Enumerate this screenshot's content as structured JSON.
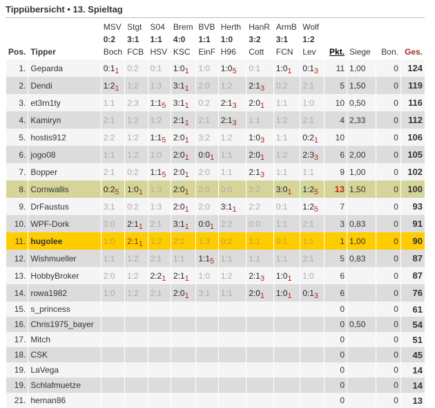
{
  "title": "Tippübersicht • 13. Spieltag",
  "columns": {
    "pos": "Pos.",
    "tipper": "Tipper",
    "pkt": "Pkt.",
    "siege": "Siege",
    "bon": "Bon.",
    "ges": "Ges."
  },
  "matches": [
    {
      "home": "MSV",
      "result": "0:2",
      "away": "Boch"
    },
    {
      "home": "Stgt",
      "result": "3:1",
      "away": "FCB"
    },
    {
      "home": "S04",
      "result": "1:1",
      "away": "HSV"
    },
    {
      "home": "Brem",
      "result": "4:0",
      "away": "KSC"
    },
    {
      "home": "BVB",
      "result": "1:1",
      "away": "EinF"
    },
    {
      "home": "Herth",
      "result": "1:0",
      "away": "H96"
    },
    {
      "home": "HanR",
      "result": "3:2",
      "away": "Cott"
    },
    {
      "home": "ArmB",
      "result": "3:1",
      "away": "FCN"
    },
    {
      "home": "Wolf",
      "result": "1:2",
      "away": "Lev"
    }
  ],
  "colors": {
    "row_odd": "#f5f5f5",
    "row_even": "#dcdcdc",
    "row_highlight": "#d5d59a",
    "row_current_user": "#ffcc00",
    "points_red": "#b02a10"
  },
  "rows": [
    {
      "pos": "1.",
      "tipper": "Geparda",
      "tips": [
        {
          "s": "0:1",
          "p": "1"
        },
        {
          "s": "0:2"
        },
        {
          "s": "0:1"
        },
        {
          "s": "1:0",
          "p": "1"
        },
        {
          "s": "1:0"
        },
        {
          "s": "1:0",
          "p": "5"
        },
        {
          "s": "0:1"
        },
        {
          "s": "1:0",
          "p": "1"
        },
        {
          "s": "0:1",
          "p": "3"
        }
      ],
      "pkt": "11",
      "siege": "1,00",
      "bon": "0",
      "ges": "124"
    },
    {
      "pos": "2.",
      "tipper": "Dendi",
      "tips": [
        {
          "s": "1:2",
          "p": "1"
        },
        {
          "s": "1:2"
        },
        {
          "s": "1:3"
        },
        {
          "s": "3:1",
          "p": "1"
        },
        {
          "s": "2:0"
        },
        {
          "s": "1:2"
        },
        {
          "s": "2:1",
          "p": "3"
        },
        {
          "s": "0:2"
        },
        {
          "s": "2:1"
        }
      ],
      "pkt": "5",
      "siege": "1,50",
      "bon": "0",
      "ges": "119"
    },
    {
      "pos": "3.",
      "tipper": "et3rn1ty",
      "tips": [
        {
          "s": "1:1"
        },
        {
          "s": "2:3"
        },
        {
          "s": "1:1",
          "p": "5"
        },
        {
          "s": "3:1",
          "p": "1"
        },
        {
          "s": "0:2"
        },
        {
          "s": "2:1",
          "p": "3"
        },
        {
          "s": "2:0",
          "p": "1"
        },
        {
          "s": "1:1"
        },
        {
          "s": "1:0"
        }
      ],
      "pkt": "10",
      "siege": "0,50",
      "bon": "0",
      "ges": "116"
    },
    {
      "pos": "4.",
      "tipper": "Kamiryn",
      "tips": [
        {
          "s": "2:1"
        },
        {
          "s": "1:2"
        },
        {
          "s": "1:2"
        },
        {
          "s": "2:1",
          "p": "1"
        },
        {
          "s": "2:1"
        },
        {
          "s": "2:1",
          "p": "3"
        },
        {
          "s": "1:1"
        },
        {
          "s": "1:2"
        },
        {
          "s": "2:1"
        }
      ],
      "pkt": "4",
      "siege": "2,33",
      "bon": "0",
      "ges": "112"
    },
    {
      "pos": "5.",
      "tipper": "hostis912",
      "tips": [
        {
          "s": "2:2"
        },
        {
          "s": "1:2"
        },
        {
          "s": "1:1",
          "p": "5"
        },
        {
          "s": "2:0",
          "p": "1"
        },
        {
          "s": "3:2"
        },
        {
          "s": "1:2"
        },
        {
          "s": "1:0",
          "p": "3"
        },
        {
          "s": "1:1"
        },
        {
          "s": "0:2",
          "p": "1"
        }
      ],
      "pkt": "10",
      "siege": "",
      "bon": "0",
      "ges": "106"
    },
    {
      "pos": "6.",
      "tipper": "jogo08",
      "tips": [
        {
          "s": "1:1"
        },
        {
          "s": "1:2"
        },
        {
          "s": "1:0"
        },
        {
          "s": "2:0",
          "p": "1"
        },
        {
          "s": "0:0",
          "p": "1"
        },
        {
          "s": "1:1"
        },
        {
          "s": "2:0",
          "p": "1"
        },
        {
          "s": "1:2"
        },
        {
          "s": "2:3",
          "p": "3"
        }
      ],
      "pkt": "6",
      "siege": "2,00",
      "bon": "0",
      "ges": "105"
    },
    {
      "pos": "7.",
      "tipper": "Bopper",
      "tips": [
        {
          "s": "2:1"
        },
        {
          "s": "0:2"
        },
        {
          "s": "1:1",
          "p": "5"
        },
        {
          "s": "2:0",
          "p": "1"
        },
        {
          "s": "2:0"
        },
        {
          "s": "1:1"
        },
        {
          "s": "2:1",
          "p": "3"
        },
        {
          "s": "1:1"
        },
        {
          "s": "1:1"
        }
      ],
      "pkt": "9",
      "siege": "1,00",
      "bon": "0",
      "ges": "102"
    },
    {
      "pos": "8.",
      "tipper": "Cornwallis",
      "highlight": "me",
      "tips": [
        {
          "s": "0:2",
          "p": "5"
        },
        {
          "s": "1:0",
          "p": "1"
        },
        {
          "s": "1:3"
        },
        {
          "s": "2:0",
          "p": "1"
        },
        {
          "s": "2:0"
        },
        {
          "s": "0:0"
        },
        {
          "s": "2:2"
        },
        {
          "s": "3:0",
          "p": "1"
        },
        {
          "s": "1:2",
          "p": "5"
        }
      ],
      "pkt": "13",
      "pkt_best": true,
      "siege": "1,50",
      "bon": "0",
      "ges": "100"
    },
    {
      "pos": "9.",
      "tipper": "DrFaustus",
      "tips": [
        {
          "s": "3:1"
        },
        {
          "s": "0:2"
        },
        {
          "s": "1:3"
        },
        {
          "s": "2:0",
          "p": "1"
        },
        {
          "s": "2:0"
        },
        {
          "s": "3:1",
          "p": "1"
        },
        {
          "s": "2:2"
        },
        {
          "s": "0:1"
        },
        {
          "s": "1:2",
          "p": "5"
        }
      ],
      "pkt": "7",
      "siege": "",
      "bon": "0",
      "ges": "93"
    },
    {
      "pos": "10.",
      "tipper": "WPF-Dork",
      "tips": [
        {
          "s": "0:0"
        },
        {
          "s": "2:1",
          "p": "1"
        },
        {
          "s": "2:1"
        },
        {
          "s": "3:1",
          "p": "1"
        },
        {
          "s": "0:0",
          "p": "1"
        },
        {
          "s": "2:2"
        },
        {
          "s": "0:0"
        },
        {
          "s": "1:1"
        },
        {
          "s": "2:1"
        }
      ],
      "pkt": "3",
      "siege": "0,83",
      "bon": "0",
      "ges": "91"
    },
    {
      "pos": "11.",
      "tipper": "hugolee",
      "highlight": "self",
      "tips": [
        {
          "s": "1:0"
        },
        {
          "s": "2:1",
          "p": "1"
        },
        {
          "s": "1:2"
        },
        {
          "s": "2:2"
        },
        {
          "s": "1:3"
        },
        {
          "s": "0:2"
        },
        {
          "s": "1:1"
        },
        {
          "s": "0:1"
        },
        {
          "s": "1:1"
        }
      ],
      "pkt": "1",
      "siege": "1,00",
      "bon": "0",
      "ges": "90"
    },
    {
      "pos": "12.",
      "tipper": "Wishmueller",
      "tips": [
        {
          "s": "1:1"
        },
        {
          "s": "1:2"
        },
        {
          "s": "2:1"
        },
        {
          "s": "1:1"
        },
        {
          "s": "1:1",
          "p": "5"
        },
        {
          "s": "1:1"
        },
        {
          "s": "1:1"
        },
        {
          "s": "1:1"
        },
        {
          "s": "2:1"
        }
      ],
      "pkt": "5",
      "siege": "0,83",
      "bon": "0",
      "ges": "87"
    },
    {
      "pos": "13.",
      "tipper": "HobbyBroker",
      "tips": [
        {
          "s": "2:0"
        },
        {
          "s": "1:2"
        },
        {
          "s": "2:2",
          "p": "1"
        },
        {
          "s": "2:1",
          "p": "1"
        },
        {
          "s": "1:0"
        },
        {
          "s": "1:2"
        },
        {
          "s": "2:1",
          "p": "3"
        },
        {
          "s": "1:0",
          "p": "1"
        },
        {
          "s": "1:0"
        }
      ],
      "pkt": "6",
      "siege": "",
      "bon": "0",
      "ges": "87"
    },
    {
      "pos": "14.",
      "tipper": "rowa1982",
      "tips": [
        {
          "s": "1:0"
        },
        {
          "s": "1:2"
        },
        {
          "s": "2:1"
        },
        {
          "s": "2:0",
          "p": "1"
        },
        {
          "s": "3:1"
        },
        {
          "s": "1:1"
        },
        {
          "s": "2:0",
          "p": "1"
        },
        {
          "s": "1:0",
          "p": "1"
        },
        {
          "s": "0:1",
          "p": "3"
        }
      ],
      "pkt": "6",
      "siege": "",
      "bon": "0",
      "ges": "76"
    },
    {
      "pos": "15.",
      "tipper": "s_princess",
      "tips": [],
      "pkt": "0",
      "siege": "",
      "bon": "0",
      "ges": "61"
    },
    {
      "pos": "16.",
      "tipper": "Chris1975_bayer",
      "tips": [],
      "pkt": "0",
      "siege": "0,50",
      "bon": "0",
      "ges": "54"
    },
    {
      "pos": "17.",
      "tipper": "Mitch",
      "tips": [],
      "pkt": "0",
      "siege": "",
      "bon": "0",
      "ges": "51"
    },
    {
      "pos": "18.",
      "tipper": "CSK",
      "tips": [],
      "pkt": "0",
      "siege": "",
      "bon": "0",
      "ges": "45"
    },
    {
      "pos": "19.",
      "tipper": "LaVega",
      "tips": [],
      "pkt": "0",
      "siege": "",
      "bon": "0",
      "ges": "14"
    },
    {
      "pos": "19.",
      "tipper": "Schlafmuetze",
      "tips": [],
      "pkt": "0",
      "siege": "",
      "bon": "0",
      "ges": "14"
    },
    {
      "pos": "21.",
      "tipper": "hernan86",
      "tips": [],
      "pkt": "0",
      "siege": "",
      "bon": "0",
      "ges": "13"
    }
  ]
}
